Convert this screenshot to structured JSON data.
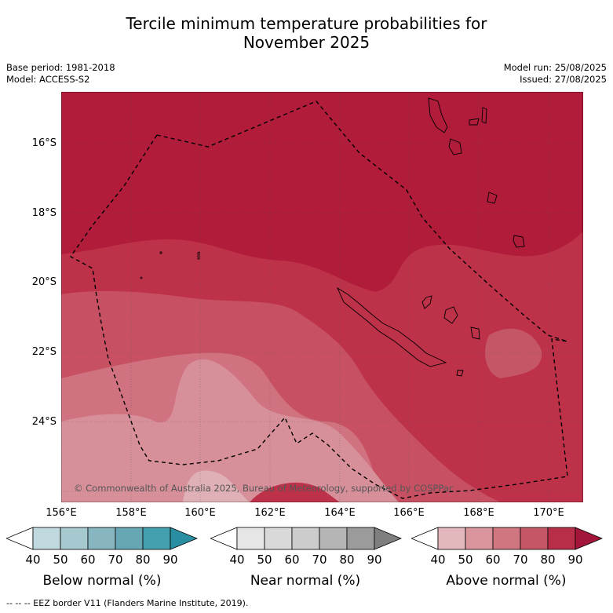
{
  "header": {
    "title_line1": "Tercile minimum temperature probabilities for",
    "title_line2": "November 2025",
    "base_period": "Base period: 1981-2018",
    "model": "Model: ACCESS-S2",
    "model_run": "Model run: 25/08/2025",
    "issued": "Issued: 27/08/2025"
  },
  "map": {
    "lat_labels": [
      "16°S",
      "18°S",
      "20°S",
      "22°S",
      "24°S"
    ],
    "lon_labels": [
      "156°E",
      "158°E",
      "160°E",
      "162°E",
      "164°E",
      "166°E",
      "168°E",
      "170°E"
    ],
    "copyright": "© Commonwealth of Australia 2025, Bureau of Meteorology, supported by COSPPac",
    "lat_range": [
      -26.0,
      -14.7
    ],
    "lon_range": [
      155.3,
      170.9
    ]
  },
  "legend": {
    "ticks": [
      "40",
      "50",
      "60",
      "70",
      "80",
      "90"
    ],
    "below": {
      "title": "Below normal (%)",
      "colors": [
        "#ffffff",
        "#c0d9de",
        "#a6c9cf",
        "#88b6c0",
        "#67a7b4",
        "#449fae",
        "#2a8ea2"
      ]
    },
    "near": {
      "title": "Near normal (%)",
      "colors": [
        "#ffffff",
        "#e6e6e6",
        "#d9d9d9",
        "#cccccc",
        "#b5b5b5",
        "#9b9b9b",
        "#7f7f7f"
      ]
    },
    "above": {
      "title": "Above normal (%)",
      "colors": [
        "#ffffff",
        "#e2b8bd",
        "#d9949c",
        "#cf7680",
        "#c55666",
        "#b82d48",
        "#a4153a"
      ]
    }
  },
  "footnote": "--  --  -- EEZ border V11 (Flanders Marine Institute, 2019)."
}
